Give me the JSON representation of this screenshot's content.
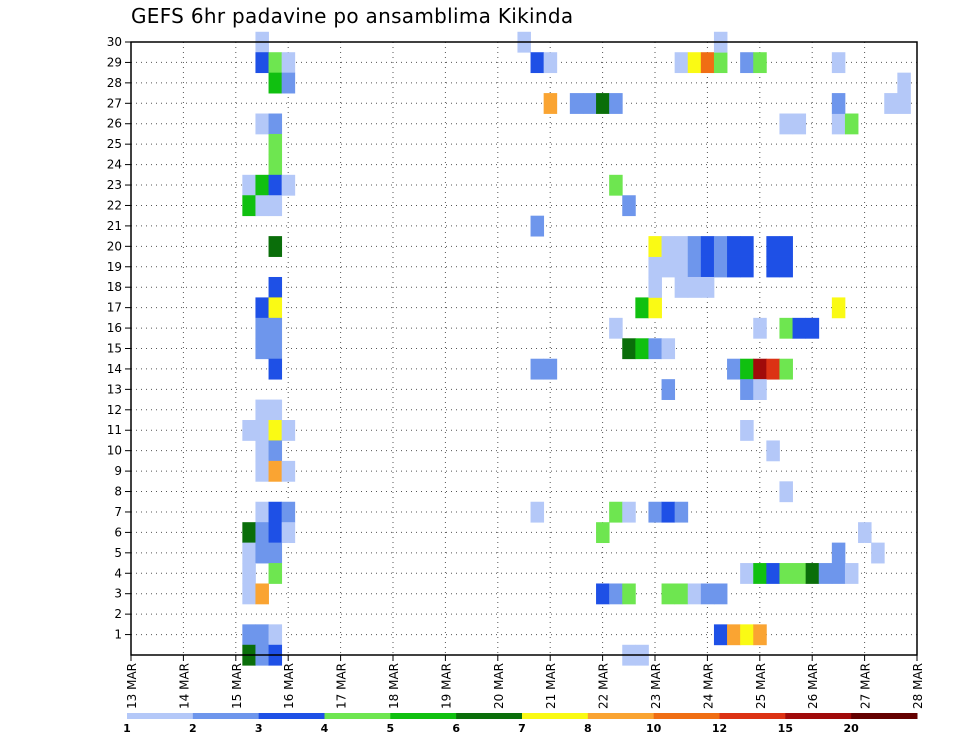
{
  "chart_data": {
    "type": "heatmap",
    "title": "GEFS 6hr padavine po ansamblima Kikinda",
    "xlabel": "",
    "ylabel": "",
    "x_tick_labels": [
      "13 MAR",
      "14 MAR",
      "15 MAR",
      "16 MAR",
      "17 MAR",
      "18 MAR",
      "19 MAR",
      "20 MAR",
      "21 MAR",
      "22 MAR",
      "23 MAR",
      "24 MAR",
      "25 MAR",
      "26 MAR",
      "27 MAR",
      "28 MAR"
    ],
    "x_range_days": [
      13,
      28
    ],
    "y_tick_labels": [
      "1",
      "2",
      "3",
      "4",
      "5",
      "6",
      "7",
      "8",
      "9",
      "10",
      "11",
      "12",
      "13",
      "14",
      "15",
      "16",
      "17",
      "18",
      "19",
      "20",
      "21",
      "22",
      "23",
      "24",
      "25",
      "26",
      "27",
      "28",
      "29",
      "30"
    ],
    "y_range_members": [
      0,
      30
    ],
    "grid": true,
    "colorbar": {
      "labels": [
        "1",
        "2",
        "3",
        "4",
        "5",
        "6",
        "7",
        "8",
        "10",
        "12",
        "15",
        "20"
      ],
      "colors": [
        "#b4c8f8",
        "#6e96ec",
        "#1e50e6",
        "#6ee650",
        "#10c010",
        "#0a6e0a",
        "#fafa14",
        "#faa432",
        "#f06e14",
        "#dc3214",
        "#a00a0a",
        "#640000"
      ]
    },
    "cells_format": [
      "x_day",
      "member",
      "class_index_1_to_12"
    ],
    "cells": [
      [
        15.5,
        30,
        1
      ],
      [
        15.5,
        29,
        3
      ],
      [
        15.75,
        29,
        4
      ],
      [
        16.0,
        29,
        1
      ],
      [
        15.75,
        28,
        5
      ],
      [
        16.0,
        28,
        2
      ],
      [
        15.5,
        26,
        1
      ],
      [
        15.75,
        26,
        2
      ],
      [
        15.75,
        25,
        4
      ],
      [
        15.75,
        24,
        4
      ],
      [
        15.25,
        23,
        1
      ],
      [
        15.5,
        23,
        5
      ],
      [
        15.75,
        23,
        3
      ],
      [
        16.0,
        23,
        1
      ],
      [
        15.25,
        22,
        5
      ],
      [
        15.5,
        22,
        1
      ],
      [
        15.75,
        22,
        1
      ],
      [
        15.75,
        20,
        6
      ],
      [
        15.75,
        18,
        3
      ],
      [
        15.5,
        17,
        3
      ],
      [
        15.75,
        17,
        7
      ],
      [
        15.5,
        16,
        2
      ],
      [
        15.75,
        16,
        2
      ],
      [
        15.5,
        15,
        2
      ],
      [
        15.75,
        15,
        2
      ],
      [
        15.75,
        14,
        3
      ],
      [
        15.5,
        12,
        1
      ],
      [
        15.75,
        12,
        1
      ],
      [
        15.25,
        11,
        1
      ],
      [
        15.5,
        11,
        1
      ],
      [
        15.75,
        11,
        7
      ],
      [
        16.0,
        11,
        1
      ],
      [
        15.5,
        10,
        1
      ],
      [
        15.75,
        10,
        2
      ],
      [
        15.5,
        9,
        1
      ],
      [
        15.75,
        9,
        8
      ],
      [
        16.0,
        9,
        1
      ],
      [
        15.5,
        7,
        1
      ],
      [
        15.75,
        7,
        3
      ],
      [
        16.0,
        7,
        2
      ],
      [
        15.25,
        6,
        6
      ],
      [
        15.5,
        6,
        2
      ],
      [
        15.75,
        6,
        3
      ],
      [
        16.0,
        6,
        1
      ],
      [
        15.25,
        5,
        1
      ],
      [
        15.5,
        5,
        2
      ],
      [
        15.75,
        5,
        2
      ],
      [
        15.25,
        4,
        1
      ],
      [
        15.75,
        4,
        4
      ],
      [
        15.25,
        3,
        1
      ],
      [
        15.5,
        3,
        8
      ],
      [
        15.25,
        1,
        2
      ],
      [
        15.5,
        1,
        2
      ],
      [
        15.75,
        1,
        1
      ],
      [
        15.25,
        0,
        6
      ],
      [
        15.5,
        0,
        2
      ],
      [
        15.75,
        0,
        3
      ],
      [
        20.5,
        30,
        1
      ],
      [
        20.75,
        29,
        3
      ],
      [
        21.0,
        29,
        1
      ],
      [
        21.0,
        27,
        8
      ],
      [
        20.75,
        21,
        2
      ],
      [
        20.75,
        14,
        2
      ],
      [
        21.0,
        14,
        2
      ],
      [
        20.75,
        7,
        1
      ],
      [
        21.5,
        27,
        2
      ],
      [
        21.75,
        27,
        2
      ],
      [
        22.0,
        27,
        6
      ],
      [
        22.25,
        27,
        2
      ],
      [
        22.25,
        23,
        4
      ],
      [
        22.5,
        22,
        2
      ],
      [
        22.25,
        16,
        1
      ],
      [
        22.25,
        7,
        4
      ],
      [
        22.5,
        7,
        1
      ],
      [
        22.0,
        6,
        4
      ],
      [
        22.0,
        3,
        3
      ],
      [
        22.25,
        3,
        2
      ],
      [
        22.5,
        3,
        4
      ],
      [
        22.5,
        0,
        1
      ],
      [
        22.75,
        0,
        1
      ],
      [
        22.5,
        15,
        6
      ],
      [
        22.75,
        15,
        5
      ],
      [
        23.0,
        15,
        2
      ],
      [
        23.25,
        15,
        1
      ],
      [
        22.75,
        17,
        5
      ],
      [
        23.0,
        17,
        7
      ],
      [
        23.0,
        18,
        1
      ],
      [
        23.0,
        19,
        1
      ],
      [
        23.0,
        20,
        7
      ],
      [
        23.25,
        20,
        1
      ],
      [
        23.5,
        20,
        1
      ],
      [
        23.75,
        20,
        2
      ],
      [
        24.0,
        20,
        3
      ],
      [
        24.25,
        20,
        2
      ],
      [
        24.5,
        20,
        3
      ],
      [
        24.75,
        20,
        3
      ],
      [
        23.25,
        19,
        1
      ],
      [
        23.5,
        19,
        1
      ],
      [
        23.75,
        19,
        2
      ],
      [
        24.0,
        19,
        3
      ],
      [
        24.25,
        19,
        2
      ],
      [
        24.5,
        19,
        3
      ],
      [
        24.75,
        19,
        3
      ],
      [
        23.5,
        18,
        1
      ],
      [
        23.75,
        18,
        1
      ],
      [
        24.0,
        18,
        1
      ],
      [
        23.25,
        13,
        2
      ],
      [
        23.0,
        7,
        2
      ],
      [
        23.25,
        7,
        3
      ],
      [
        23.5,
        7,
        2
      ],
      [
        23.25,
        3,
        4
      ],
      [
        23.5,
        3,
        4
      ],
      [
        23.75,
        3,
        1
      ],
      [
        24.0,
        3,
        2
      ],
      [
        24.25,
        3,
        2
      ],
      [
        23.5,
        29,
        1
      ],
      [
        23.75,
        29,
        7
      ],
      [
        24.0,
        29,
        9
      ],
      [
        24.25,
        29,
        4
      ],
      [
        24.25,
        30,
        1
      ],
      [
        24.75,
        29,
        2
      ],
      [
        25.0,
        29,
        4
      ],
      [
        24.25,
        1,
        3
      ],
      [
        24.5,
        1,
        8
      ],
      [
        24.75,
        1,
        7
      ],
      [
        25.0,
        1,
        8
      ],
      [
        25.25,
        20,
        3
      ],
      [
        25.5,
        20,
        3
      ],
      [
        25.25,
        19,
        3
      ],
      [
        25.5,
        19,
        3
      ],
      [
        25.0,
        16,
        1
      ],
      [
        25.5,
        16,
        4
      ],
      [
        25.75,
        16,
        3
      ],
      [
        26.0,
        16,
        3
      ],
      [
        24.5,
        14,
        2
      ],
      [
        24.75,
        14,
        5
      ],
      [
        25.0,
        14,
        11
      ],
      [
        25.25,
        14,
        10
      ],
      [
        25.5,
        14,
        4
      ],
      [
        24.75,
        13,
        2
      ],
      [
        25.0,
        13,
        1
      ],
      [
        24.75,
        11,
        1
      ],
      [
        25.25,
        10,
        1
      ],
      [
        25.5,
        8,
        1
      ],
      [
        24.75,
        4,
        1
      ],
      [
        25.0,
        4,
        5
      ],
      [
        25.25,
        4,
        3
      ],
      [
        25.5,
        4,
        4
      ],
      [
        25.75,
        4,
        4
      ],
      [
        26.0,
        4,
        6
      ],
      [
        26.25,
        4,
        2
      ],
      [
        26.5,
        4,
        2
      ],
      [
        26.75,
        4,
        1
      ],
      [
        26.5,
        5,
        2
      ],
      [
        27.0,
        6,
        1
      ],
      [
        27.25,
        5,
        1
      ],
      [
        25.5,
        26,
        1
      ],
      [
        25.75,
        26,
        1
      ],
      [
        26.5,
        26,
        1
      ],
      [
        26.75,
        26,
        4
      ],
      [
        26.5,
        27,
        2
      ],
      [
        27.5,
        27,
        1
      ],
      [
        27.75,
        27,
        1
      ],
      [
        27.75,
        28,
        1
      ],
      [
        26.5,
        29,
        1
      ],
      [
        26.5,
        17,
        7
      ]
    ]
  }
}
